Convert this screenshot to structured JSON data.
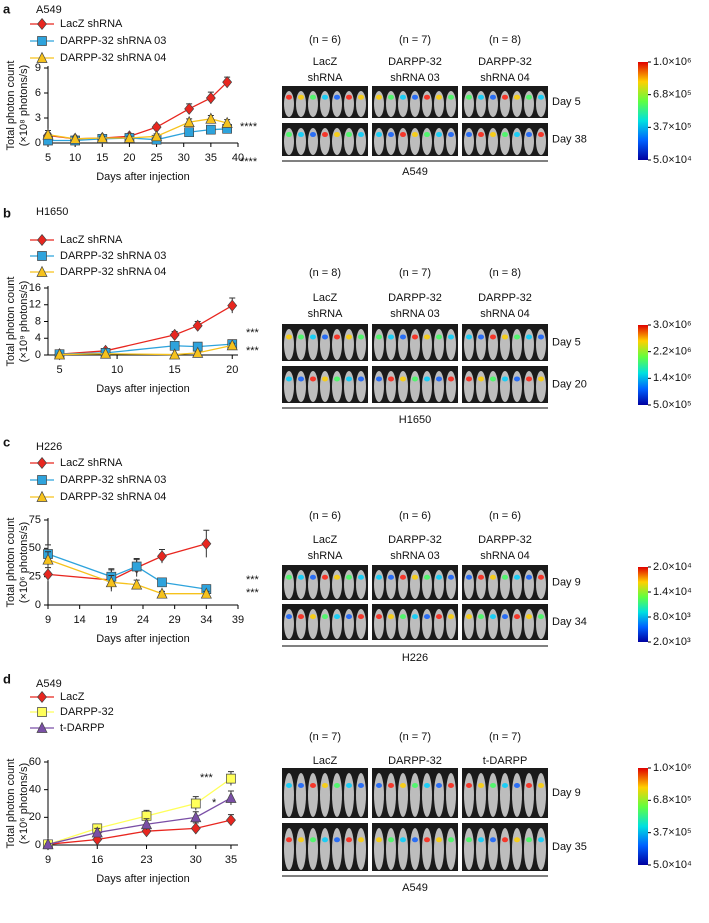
{
  "chart_data": [
    {
      "type": "line",
      "panel": "a",
      "title": "A549",
      "xlabel": "Days after injection",
      "ylabel": [
        "Total photon count",
        "(×10⁸ photons/s)"
      ],
      "x": [
        5,
        10,
        15,
        20,
        25,
        31,
        35,
        38
      ],
      "xlim": [
        5,
        40
      ],
      "xticks": [
        5,
        10,
        15,
        20,
        25,
        30,
        35,
        40
      ],
      "ylim": [
        0,
        9
      ],
      "yticks": [
        0,
        3,
        6,
        9
      ],
      "series": [
        {
          "name": "LacZ shRNA",
          "color": "#e8261f",
          "marker": "diamond",
          "values": [
            0.9,
            0.5,
            0.6,
            0.8,
            1.9,
            4.1,
            5.4,
            7.3
          ],
          "errors": [
            0.3,
            0.2,
            0.2,
            0.2,
            0.3,
            0.6,
            0.7,
            0.6
          ]
        },
        {
          "name": "DARPP-32 shRNA 03",
          "color": "#2ea3dc",
          "marker": "square",
          "values": [
            0.3,
            0.3,
            0.5,
            0.6,
            0.4,
            1.3,
            1.6,
            1.7
          ],
          "errors": [
            0.2,
            0.1,
            0.1,
            0.1,
            0.1,
            0.3,
            0.3,
            0.3
          ]
        },
        {
          "name": "DARPP-32 shRNA 04",
          "color": "#f6c21c",
          "marker": "triangle",
          "values": [
            1.0,
            0.5,
            0.6,
            0.6,
            0.8,
            2.5,
            2.9,
            2.4
          ],
          "errors": [
            0.5,
            0.2,
            0.2,
            0.2,
            0.3,
            0.4,
            0.4,
            0.4
          ]
        }
      ],
      "annotations": [
        "****",
        "****"
      ]
    },
    {
      "type": "line",
      "panel": "b",
      "title": "H1650",
      "xlabel": "Days after injection",
      "ylabel": [
        "Total photon count",
        "(×10⁹ photons/s)"
      ],
      "x": [
        5,
        9,
        15,
        17,
        20
      ],
      "xlim": [
        4,
        20.5
      ],
      "xticks": [
        5,
        10,
        15,
        20
      ],
      "ylim": [
        0,
        16
      ],
      "yticks": [
        0,
        4,
        8,
        12,
        16
      ],
      "series": [
        {
          "name": "LacZ shRNA",
          "color": "#e8261f",
          "marker": "diamond",
          "values": [
            0.2,
            1.0,
            4.8,
            7.0,
            11.8
          ],
          "errors": [
            0.2,
            0.4,
            0.8,
            1.0,
            1.8
          ]
        },
        {
          "name": "DARPP-32 shRNA 03",
          "color": "#2ea3dc",
          "marker": "square",
          "values": [
            0.2,
            0.5,
            2.2,
            2.0,
            2.6
          ],
          "errors": [
            0.1,
            0.2,
            0.4,
            0.4,
            0.5
          ]
        },
        {
          "name": "DARPP-32 shRNA 04",
          "color": "#f6c21c",
          "marker": "triangle",
          "values": [
            0.1,
            0.3,
            0.1,
            0.5,
            2.3
          ],
          "errors": [
            0.1,
            0.1,
            0.1,
            0.2,
            0.5
          ]
        }
      ],
      "annotations": [
        "***",
        "***"
      ]
    },
    {
      "type": "line",
      "panel": "c",
      "title": "H226",
      "xlabel": "Days after injection",
      "ylabel": [
        "Total photon count",
        "(×10⁶ photons/s)"
      ],
      "x": [
        9,
        19,
        23,
        27,
        34
      ],
      "xlim": [
        9,
        39
      ],
      "xticks": [
        9,
        14,
        19,
        24,
        29,
        34,
        39
      ],
      "ylim": [
        0,
        75
      ],
      "yticks": [
        0,
        25,
        50,
        75
      ],
      "series": [
        {
          "name": "LacZ shRNA",
          "color": "#e8261f",
          "marker": "diamond",
          "values": [
            27,
            22,
            33,
            43,
            54
          ],
          "errors": [
            6,
            10,
            8,
            6,
            12
          ]
        },
        {
          "name": "DARPP-32 shRNA 03",
          "color": "#2ea3dc",
          "marker": "square",
          "values": [
            45,
            25,
            34,
            20,
            14
          ],
          "errors": [
            8,
            6,
            6,
            3,
            2
          ]
        },
        {
          "name": "DARPP-32 shRNA 04",
          "color": "#f6c21c",
          "marker": "triangle",
          "values": [
            40,
            20,
            18,
            10,
            10
          ],
          "errors": [
            7,
            6,
            4,
            2,
            2
          ]
        }
      ],
      "annotations": [
        "***",
        "***"
      ]
    },
    {
      "type": "line",
      "panel": "d",
      "title": "A549",
      "xlabel": "Days after injection",
      "ylabel": [
        "Total photon count",
        "(×10⁶ photons/s)"
      ],
      "x": [
        9,
        16,
        23,
        30,
        35
      ],
      "xlim": [
        9,
        36
      ],
      "xticks": [
        9,
        16,
        23,
        30,
        35
      ],
      "ylim": [
        0,
        60
      ],
      "yticks": [
        0,
        20,
        40,
        60
      ],
      "series": [
        {
          "name": "LacZ",
          "color": "#e8261f",
          "marker": "diamond",
          "values": [
            0.5,
            4,
            10,
            12,
            18
          ],
          "errors": [
            0.3,
            2,
            3,
            4,
            4
          ]
        },
        {
          "name": "DARPP-32",
          "color": "#ffff5a",
          "marker": "square",
          "values": [
            0.5,
            12,
            21,
            30,
            48
          ],
          "errors": [
            0.3,
            3,
            4,
            5,
            5
          ]
        },
        {
          "name": "t-DARPP",
          "color": "#7a4fa6",
          "marker": "triangle",
          "values": [
            0.5,
            9,
            15,
            20,
            34
          ],
          "errors": [
            0.3,
            3,
            4,
            4,
            5
          ]
        }
      ],
      "annotations": [
        "***",
        "*"
      ]
    }
  ],
  "image_panels": [
    {
      "groups": [
        {
          "n": "(n = 6)",
          "name": [
            "LacZ",
            "shRNA"
          ]
        },
        {
          "n": "(n = 7)",
          "name": [
            "DARPP-32",
            "shRNA 03"
          ]
        },
        {
          "n": "(n = 8)",
          "name": [
            "DARPP-32",
            "shRNA 04"
          ]
        }
      ],
      "days": [
        "Day 5",
        "Day 38"
      ],
      "cell_line": "A549",
      "colorbar": [
        "1.0×10⁶",
        "6.8×10⁵",
        "3.7×10⁵",
        "5.0×10⁴"
      ]
    },
    {
      "groups": [
        {
          "n": "(n = 8)",
          "name": [
            "LacZ",
            "shRNA"
          ]
        },
        {
          "n": "(n = 7)",
          "name": [
            "DARPP-32",
            "shRNA 03"
          ]
        },
        {
          "n": "(n = 8)",
          "name": [
            "DARPP-32",
            "shRNA 04"
          ]
        }
      ],
      "days": [
        "Day 5",
        "Day 20"
      ],
      "cell_line": "H1650",
      "colorbar": [
        "3.0×10⁶",
        "2.2×10⁶",
        "1.4×10⁶",
        "5.0×10⁵"
      ]
    },
    {
      "groups": [
        {
          "n": "(n = 6)",
          "name": [
            "LacZ",
            "shRNA"
          ]
        },
        {
          "n": "(n = 6)",
          "name": [
            "DARPP-32",
            "shRNA 03"
          ]
        },
        {
          "n": "(n = 6)",
          "name": [
            "DARPP-32",
            "shRNA 04"
          ]
        }
      ],
      "days": [
        "Day 9",
        "Day 34"
      ],
      "cell_line": "H226",
      "colorbar": [
        "2.0×10⁴",
        "1.4×10⁴",
        "8.0×10³",
        "2.0×10³"
      ]
    },
    {
      "groups": [
        {
          "n": "(n = 7)",
          "name": [
            "LacZ"
          ]
        },
        {
          "n": "(n = 7)",
          "name": [
            "DARPP-32"
          ]
        },
        {
          "n": "(n = 7)",
          "name": [
            "t-DARPP"
          ]
        }
      ],
      "days": [
        "Day 9",
        "Day 35"
      ],
      "cell_line": "A549",
      "colorbar": [
        "1.0×10⁶",
        "6.8×10⁵",
        "3.7×10⁵",
        "5.0×10⁴"
      ]
    }
  ]
}
